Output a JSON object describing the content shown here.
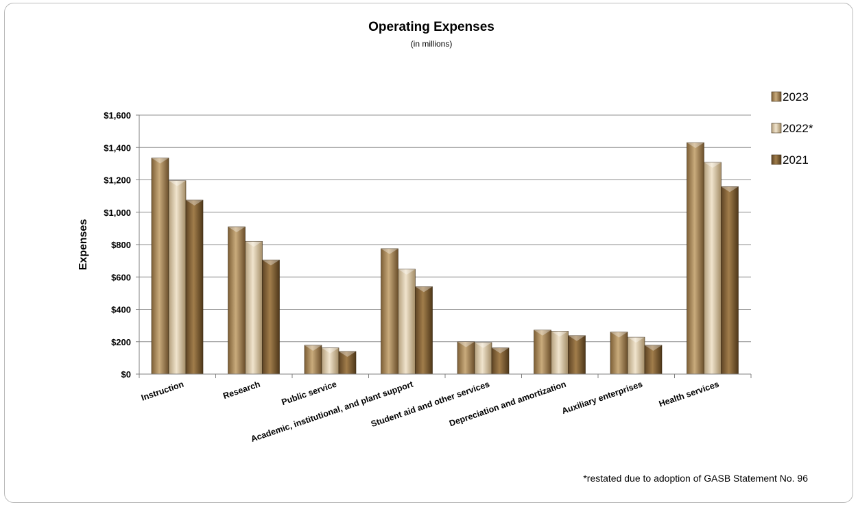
{
  "chart_data": {
    "type": "bar",
    "title": "Operating Expenses",
    "subtitle": "(in millions)",
    "ylabel": "Expenses",
    "xlabel": "",
    "ylim": [
      0,
      1600
    ],
    "yticks": [
      "$0",
      "$200",
      "$400",
      "$600",
      "$800",
      "$1,000",
      "$1,200",
      "$1,400",
      "$1,600"
    ],
    "categories": [
      "Instruction",
      "Research",
      "Public service",
      "Academic, institutional, and plant support",
      "Student aid and other services",
      "Depreciation and amortization",
      "Auxiliary enterprises",
      "Health services"
    ],
    "series": [
      {
        "name": "2023",
        "color": "#a8875a",
        "values": [
          1335,
          910,
          178,
          775,
          200,
          272,
          260,
          1430
        ]
      },
      {
        "name": "2022*",
        "color": "#d8c6a6",
        "values": [
          1195,
          820,
          162,
          648,
          195,
          265,
          228,
          1308
        ]
      },
      {
        "name": "2021",
        "color": "#8a6a3e",
        "values": [
          1075,
          705,
          140,
          540,
          162,
          238,
          178,
          1158
        ]
      }
    ],
    "grid": true,
    "legend_position": "right",
    "footnote": "*restated due to adoption of GASB Statement No. 96"
  }
}
